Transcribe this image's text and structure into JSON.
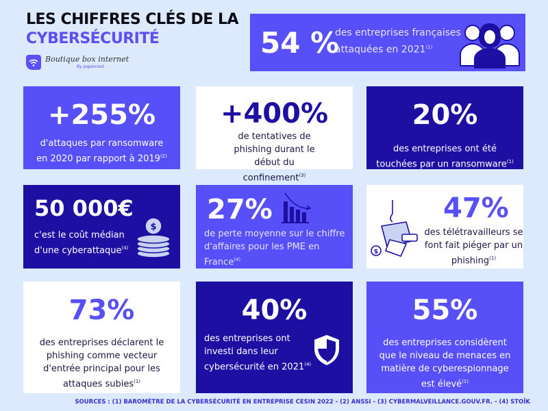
{
  "header": {
    "line1": "LES CHIFFRES CLÉS DE LA",
    "line2": "CYBERSÉCURITÉ",
    "logo_name": "Boutique box internet",
    "logo_sub": "By papernest"
  },
  "colors": {
    "background": "#dde9fd",
    "blue": "#574ff7",
    "navy": "#1e0fa3",
    "white": "#ffffff"
  },
  "stats": [
    {
      "value": "54 %",
      "text": "des entreprises françaises attaquées en 2021",
      "note": "(1)",
      "icon": "people-icon"
    },
    {
      "value": "+255%",
      "text": "d'attaques par ransomware en 2020 par rapport à 2019",
      "note": "(2)"
    },
    {
      "value": "+400%",
      "text": "de tentatives de phishing durant le début du confinement",
      "note": "(3)"
    },
    {
      "value": "20%",
      "text": "des entreprises ont été touchées par un ransomware",
      "note": "(1)"
    },
    {
      "value": "50 000€",
      "text": "c'est le coût médian d'une cyberattaque",
      "note": "(4)",
      "icon": "coins-icon"
    },
    {
      "value": "27%",
      "text": "de perte moyenne sur le chiffre d'affaires pour les PME en France",
      "note": "(4)",
      "icon": "declining-chart-icon"
    },
    {
      "value": "47%",
      "text": "des télétravailleurs se font fait piéger par un phishing",
      "note": "(1)",
      "icon": "phishing-hook-icon"
    },
    {
      "value": "73%",
      "text": "des entreprises déclarent le phishing comme vecteur d'entrée principal pour les attaques subies",
      "note": "(1)"
    },
    {
      "value": "40%",
      "text": "des entreprises ont investi dans leur cybersécurité en 2021",
      "note": "(4)",
      "icon": "shield-icon"
    },
    {
      "value": "55%",
      "text": "des entreprises considèrent que le niveau de menaces en matière de cyberespionnage est élevé",
      "note": "(1)"
    }
  ],
  "sources": "SOURCES : (1)  BAROMÈTRE DE LA CYBERSÉCURITÉ EN ENTREPRISE CESIN 2022 - (2) ANSSI - (3) CYBERMALVEILLANCE.GOUV.FR. - (4) STOÏK"
}
